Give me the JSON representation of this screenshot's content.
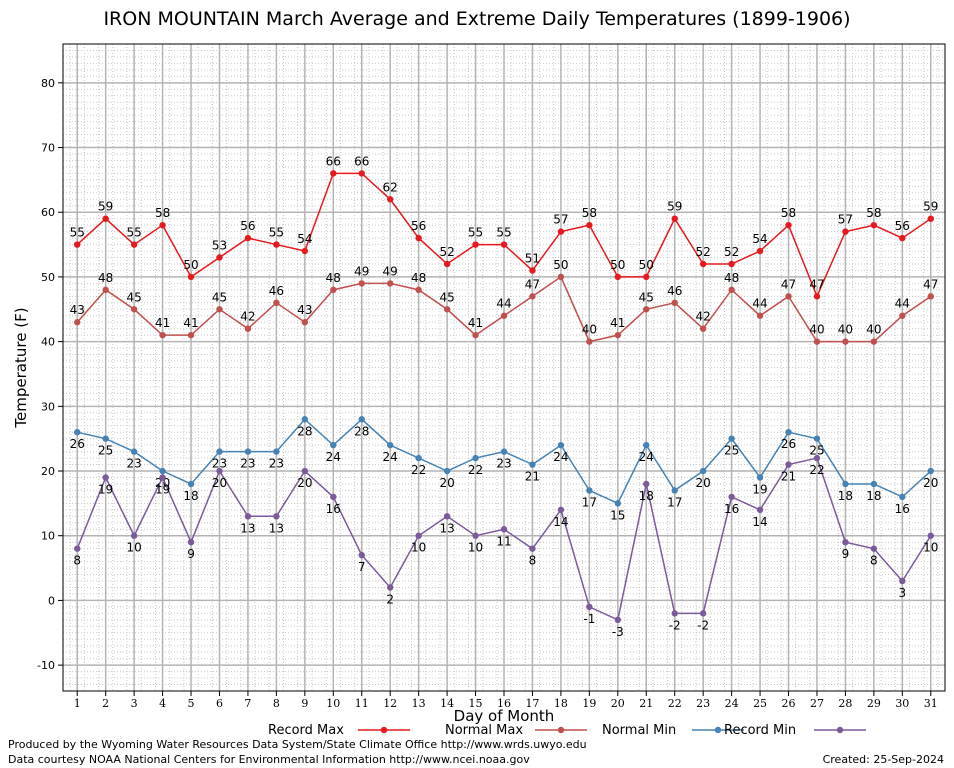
{
  "chart_data": {
    "type": "line",
    "title": "IRON MOUNTAIN March Average and Extreme Daily Temperatures (1899-1906)",
    "xlabel": "Day of Month",
    "ylabel": "Temperature (F)",
    "x": [
      1,
      2,
      3,
      4,
      5,
      6,
      7,
      8,
      9,
      10,
      11,
      12,
      13,
      14,
      15,
      16,
      17,
      18,
      19,
      20,
      21,
      22,
      23,
      24,
      25,
      26,
      27,
      28,
      29,
      30,
      31
    ],
    "ylim": [
      -14,
      86
    ],
    "yticks": [
      -10,
      0,
      10,
      20,
      30,
      40,
      50,
      60,
      70,
      80
    ],
    "grid": true,
    "legend_position": "bottom",
    "series": [
      {
        "name": "Record Max",
        "color": "#e8191c",
        "values": [
          55,
          59,
          55,
          58,
          50,
          53,
          56,
          55,
          54,
          66,
          66,
          62,
          56,
          52,
          55,
          55,
          51,
          57,
          58,
          50,
          50,
          59,
          52,
          52,
          54,
          58,
          47,
          57,
          58,
          56,
          59
        ]
      },
      {
        "name": "Normal Max",
        "color": "#c0504d",
        "values": [
          43,
          48,
          45,
          41,
          41,
          45,
          42,
          46,
          43,
          48,
          49,
          49,
          48,
          45,
          41,
          44,
          47,
          50,
          40,
          41,
          45,
          46,
          42,
          48,
          44,
          47,
          40,
          40,
          40,
          44,
          47
        ]
      },
      {
        "name": "Normal Min",
        "color": "#4682b4",
        "values": [
          26,
          25,
          23,
          20,
          18,
          23,
          23,
          23,
          28,
          24,
          28,
          24,
          22,
          20,
          22,
          23,
          21,
          24,
          17,
          15,
          24,
          17,
          20,
          25,
          19,
          26,
          25,
          18,
          18,
          16,
          20
        ]
      },
      {
        "name": "Record Min",
        "color": "#7b5a9b",
        "values": [
          8,
          19,
          10,
          19,
          9,
          20,
          13,
          13,
          20,
          16,
          7,
          2,
          10,
          13,
          10,
          11,
          8,
          14,
          -1,
          -3,
          18,
          -2,
          -2,
          16,
          14,
          21,
          22,
          9,
          8,
          3,
          10
        ]
      }
    ]
  },
  "footer": {
    "credit_line1": "Produced by the Wyoming Water Resources Data System/State Climate Office http://www.wrds.uwyo.edu",
    "credit_line2": "Data courtesy NOAA National Centers for Environmental Information http://www.ncei.noaa.gov",
    "created": "Created:  25-Sep-2024"
  }
}
